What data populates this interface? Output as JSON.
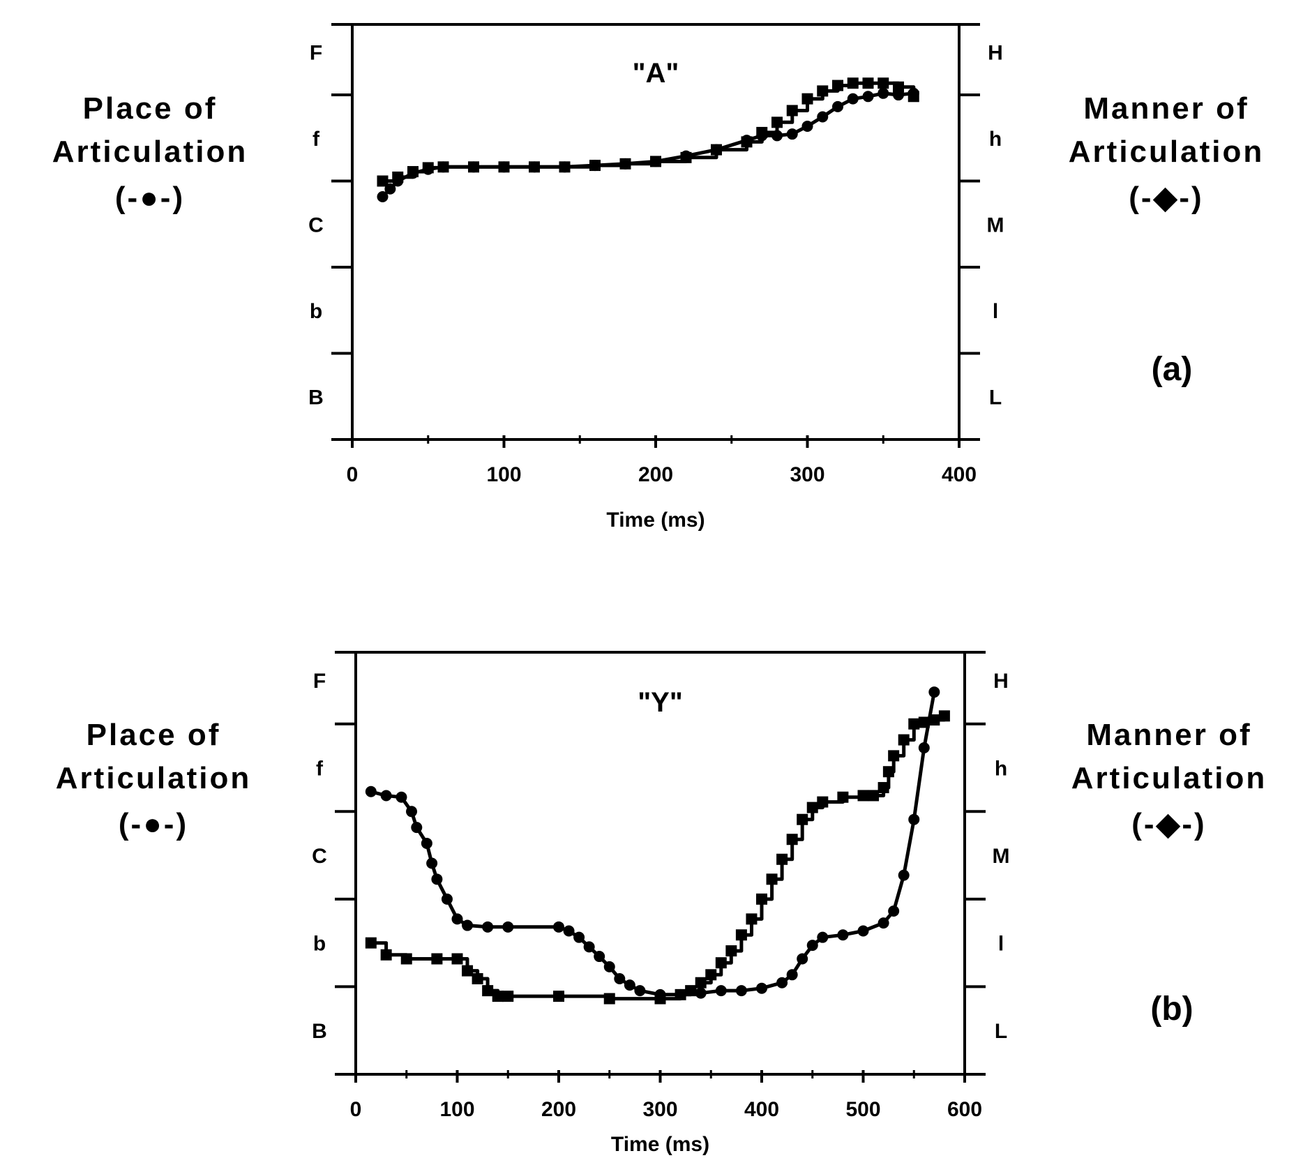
{
  "charts": [
    {
      "panel_label": "(a)",
      "left_axis": {
        "line1": "Place of",
        "line2": "Articulation",
        "marker": "(-●-)"
      },
      "right_axis": {
        "line1": "Manner of",
        "line2": "Articulation",
        "marker": "(-◆-)"
      }
    },
    {
      "panel_label": "(b)",
      "left_axis": {
        "line1": "Place of",
        "line2": "Articulation",
        "marker": "(-●-)"
      },
      "right_axis": {
        "line1": "Manner of",
        "line2": "Articulation",
        "marker": "(-◆-)"
      }
    }
  ],
  "chart_data": [
    {
      "type": "line",
      "title": "\"A\"",
      "xlabel": "Time (ms)",
      "xlim": [
        0,
        400
      ],
      "xticks": [
        "0",
        "100",
        "200",
        "300",
        "400"
      ],
      "ylim": [
        0,
        5.3
      ],
      "left_categories": [
        "B",
        "b",
        "C",
        "f",
        "F"
      ],
      "right_categories": [
        "L",
        "l",
        "M",
        "h",
        "H"
      ],
      "grid": false,
      "series": [
        {
          "axis": "left",
          "marker": "circle",
          "x": [
            20,
            25,
            30,
            40,
            50,
            60,
            80,
            100,
            120,
            140,
            160,
            180,
            200,
            220,
            240,
            260,
            270,
            280,
            290,
            300,
            310,
            320,
            330,
            340,
            350,
            360,
            370
          ],
          "y": [
            3.1,
            3.2,
            3.3,
            3.4,
            3.45,
            3.48,
            3.48,
            3.48,
            3.48,
            3.48,
            3.5,
            3.52,
            3.55,
            3.62,
            3.7,
            3.82,
            3.88,
            3.88,
            3.9,
            4.0,
            4.12,
            4.25,
            4.35,
            4.38,
            4.42,
            4.4,
            4.42
          ]
        },
        {
          "axis": "right",
          "marker": "square",
          "x": [
            20,
            30,
            40,
            50,
            60,
            80,
            100,
            120,
            140,
            160,
            180,
            200,
            220,
            240,
            260,
            270,
            280,
            290,
            300,
            310,
            320,
            330,
            340,
            350,
            360,
            370
          ],
          "y": [
            3.3,
            3.35,
            3.42,
            3.47,
            3.48,
            3.48,
            3.48,
            3.48,
            3.48,
            3.5,
            3.52,
            3.55,
            3.6,
            3.7,
            3.8,
            3.92,
            4.05,
            4.2,
            4.35,
            4.45,
            4.52,
            4.55,
            4.55,
            4.55,
            4.5,
            4.38
          ]
        }
      ]
    },
    {
      "type": "line",
      "title": "\"Y\"",
      "xlabel": "Time (ms)",
      "xlim": [
        0,
        600
      ],
      "xticks": [
        "0",
        "100",
        "200",
        "300",
        "400",
        "500",
        "600"
      ],
      "ylim": [
        0,
        5.3
      ],
      "left_categories": [
        "B",
        "b",
        "C",
        "f",
        "F"
      ],
      "right_categories": [
        "L",
        "l",
        "M",
        "h",
        "H"
      ],
      "grid": false,
      "series": [
        {
          "axis": "left",
          "marker": "circle",
          "x": [
            15,
            30,
            45,
            55,
            60,
            70,
            75,
            80,
            90,
            100,
            110,
            130,
            150,
            200,
            210,
            220,
            230,
            240,
            250,
            260,
            270,
            280,
            300,
            320,
            340,
            360,
            380,
            400,
            420,
            430,
            440,
            450,
            460,
            480,
            500,
            520,
            530,
            540,
            550,
            560,
            570
          ],
          "y": [
            3.55,
            3.5,
            3.48,
            3.3,
            3.1,
            2.9,
            2.65,
            2.45,
            2.2,
            1.95,
            1.87,
            1.85,
            1.85,
            1.85,
            1.8,
            1.72,
            1.6,
            1.48,
            1.35,
            1.2,
            1.12,
            1.05,
            1.0,
            1.0,
            1.02,
            1.05,
            1.05,
            1.08,
            1.15,
            1.25,
            1.45,
            1.62,
            1.72,
            1.75,
            1.8,
            1.9,
            2.05,
            2.5,
            3.2,
            4.1,
            4.8
          ]
        },
        {
          "axis": "right",
          "marker": "square",
          "x": [
            15,
            30,
            50,
            80,
            100,
            110,
            120,
            130,
            140,
            150,
            200,
            250,
            300,
            320,
            330,
            340,
            350,
            360,
            370,
            380,
            390,
            400,
            410,
            420,
            430,
            440,
            450,
            460,
            480,
            500,
            510,
            520,
            525,
            530,
            540,
            550,
            560,
            570,
            580
          ],
          "y": [
            1.65,
            1.5,
            1.45,
            1.45,
            1.45,
            1.3,
            1.2,
            1.05,
            0.98,
            0.98,
            0.98,
            0.95,
            0.95,
            1.0,
            1.05,
            1.15,
            1.25,
            1.4,
            1.55,
            1.75,
            1.95,
            2.2,
            2.45,
            2.7,
            2.95,
            3.2,
            3.35,
            3.42,
            3.48,
            3.5,
            3.5,
            3.6,
            3.8,
            4.0,
            4.2,
            4.4,
            4.42,
            4.45,
            4.5
          ]
        }
      ]
    }
  ]
}
